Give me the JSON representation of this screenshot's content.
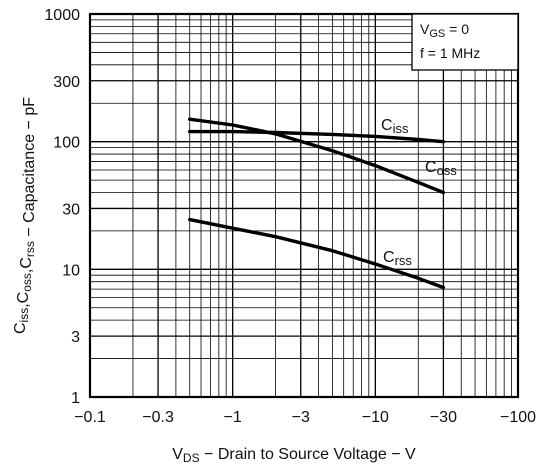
{
  "chart_data": {
    "type": "line",
    "xlabel": {
      "base": "V",
      "sub": "DS",
      "rest": " − Drain to Source Voltage − V"
    },
    "ylabel": {
      "parts": [
        {
          "base": "C",
          "sub": "iss"
        },
        {
          "base": ",C",
          "sub": "oss"
        },
        {
          "base": ",C",
          "sub": "rss"
        }
      ],
      "rest": " − Capacitance − pF"
    },
    "x_scale": "log",
    "y_scale": "log",
    "x_ticks": [
      {
        "value": 0.1,
        "label": "−0.1"
      },
      {
        "value": 0.3,
        "label": "−0.3"
      },
      {
        "value": 1,
        "label": "−1"
      },
      {
        "value": 3,
        "label": "−3"
      },
      {
        "value": 10,
        "label": "−10"
      },
      {
        "value": 30,
        "label": "−30"
      },
      {
        "value": 100,
        "label": "−100"
      }
    ],
    "y_ticks": [
      {
        "value": 1,
        "label": "1"
      },
      {
        "value": 3,
        "label": "3"
      },
      {
        "value": 10,
        "label": "10"
      },
      {
        "value": 30,
        "label": "30"
      },
      {
        "value": 100,
        "label": "100"
      },
      {
        "value": 300,
        "label": "300"
      },
      {
        "value": 1000,
        "label": "1000"
      }
    ],
    "xlim": [
      0.1,
      100
    ],
    "ylim": [
      1,
      1000
    ],
    "grid": true,
    "conditions": [
      {
        "base": "V",
        "sub": "GS",
        "rest": " = 0"
      },
      {
        "text": "f = 1 MHz"
      }
    ],
    "series": [
      {
        "name": "Ciss",
        "label_base": "C",
        "label_sub": "iss",
        "x": [
          0.5,
          1,
          2,
          5,
          10,
          20,
          30
        ],
        "y": [
          120,
          120,
          118,
          114,
          110,
          104,
          100
        ]
      },
      {
        "name": "Coss",
        "label_base": "C",
        "label_sub": "oss",
        "x": [
          0.5,
          1,
          2,
          5,
          10,
          20,
          30
        ],
        "y": [
          150,
          135,
          115,
          85,
          65,
          48,
          40
        ]
      },
      {
        "name": "Crss",
        "label_base": "C",
        "label_sub": "rss",
        "x": [
          0.5,
          1,
          2,
          5,
          10,
          20,
          30
        ],
        "y": [
          24.5,
          21,
          18,
          14,
          11,
          8.5,
          7.2
        ]
      }
    ]
  }
}
